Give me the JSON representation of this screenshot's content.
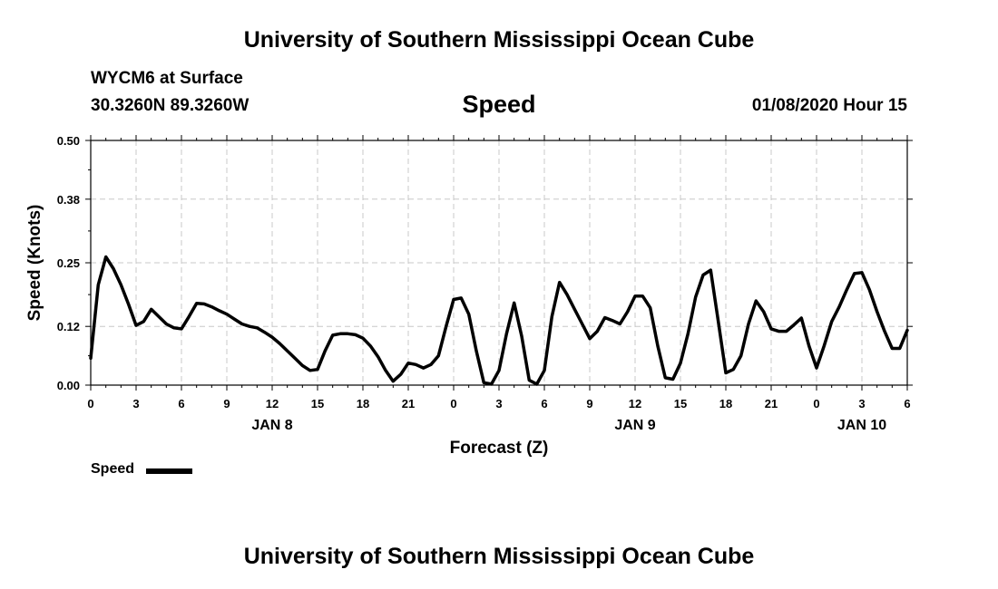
{
  "header": {
    "title": "University of Southern Mississippi Ocean Cube",
    "station": "WYCM6 at Surface",
    "coords": "30.3260N 89.3260W",
    "variable": "Speed",
    "datetime": "01/08/2020 Hour 15"
  },
  "footer": {
    "title": "University of Southern Mississippi Ocean Cube"
  },
  "legend": {
    "label": "Speed",
    "color": "#000000"
  },
  "chart_data": {
    "type": "line",
    "title": "Speed",
    "xlabel": "Forecast (Z)",
    "ylabel": "Speed (Knots)",
    "ylim": [
      0,
      0.5
    ],
    "yticks": [
      "0.00",
      "0.12",
      "0.25",
      "0.38",
      "0.50"
    ],
    "xlim": [
      0,
      54
    ],
    "xticks": [
      {
        "h": 0,
        "label": "0"
      },
      {
        "h": 3,
        "label": "3"
      },
      {
        "h": 6,
        "label": "6"
      },
      {
        "h": 9,
        "label": "9"
      },
      {
        "h": 12,
        "label": "12"
      },
      {
        "h": 15,
        "label": "15"
      },
      {
        "h": 18,
        "label": "18"
      },
      {
        "h": 21,
        "label": "21"
      },
      {
        "h": 24,
        "label": "0"
      },
      {
        "h": 27,
        "label": "3"
      },
      {
        "h": 30,
        "label": "6"
      },
      {
        "h": 33,
        "label": "9"
      },
      {
        "h": 36,
        "label": "12"
      },
      {
        "h": 39,
        "label": "15"
      },
      {
        "h": 42,
        "label": "18"
      },
      {
        "h": 45,
        "label": "21"
      },
      {
        "h": 48,
        "label": "0"
      },
      {
        "h": 51,
        "label": "3"
      },
      {
        "h": 54,
        "label": "6"
      }
    ],
    "day_labels": [
      {
        "h": 12,
        "label": "JAN 8"
      },
      {
        "h": 36,
        "label": "JAN 9"
      },
      {
        "h": 51,
        "label": "JAN 10"
      }
    ],
    "grid": true,
    "series": [
      {
        "name": "Speed",
        "color": "#000000",
        "points": [
          [
            0,
            0.055
          ],
          [
            0.5,
            0.205
          ],
          [
            1,
            0.262
          ],
          [
            1.5,
            0.238
          ],
          [
            2,
            0.205
          ],
          [
            2.5,
            0.165
          ],
          [
            3,
            0.122
          ],
          [
            3.5,
            0.13
          ],
          [
            4,
            0.155
          ],
          [
            4.5,
            0.14
          ],
          [
            5,
            0.125
          ],
          [
            5.5,
            0.117
          ],
          [
            6,
            0.115
          ],
          [
            6.5,
            0.14
          ],
          [
            7,
            0.167
          ],
          [
            7.5,
            0.166
          ],
          [
            8,
            0.16
          ],
          [
            8.5,
            0.152
          ],
          [
            9,
            0.145
          ],
          [
            9.5,
            0.135
          ],
          [
            10,
            0.125
          ],
          [
            10.5,
            0.12
          ],
          [
            11,
            0.117
          ],
          [
            11.5,
            0.108
          ],
          [
            12,
            0.098
          ],
          [
            12.5,
            0.085
          ],
          [
            13,
            0.07
          ],
          [
            13.5,
            0.055
          ],
          [
            14,
            0.04
          ],
          [
            14.5,
            0.03
          ],
          [
            15,
            0.032
          ],
          [
            15.5,
            0.07
          ],
          [
            16,
            0.102
          ],
          [
            16.5,
            0.105
          ],
          [
            17,
            0.105
          ],
          [
            17.5,
            0.103
          ],
          [
            18,
            0.096
          ],
          [
            18.5,
            0.08
          ],
          [
            19,
            0.058
          ],
          [
            19.5,
            0.03
          ],
          [
            20,
            0.008
          ],
          [
            20.5,
            0.022
          ],
          [
            21,
            0.045
          ],
          [
            21.5,
            0.042
          ],
          [
            22,
            0.035
          ],
          [
            22.5,
            0.042
          ],
          [
            23,
            0.06
          ],
          [
            23.5,
            0.12
          ],
          [
            24,
            0.175
          ],
          [
            24.5,
            0.178
          ],
          [
            25,
            0.145
          ],
          [
            25.5,
            0.07
          ],
          [
            26,
            0.005
          ],
          [
            26.5,
            0.002
          ],
          [
            27,
            0.03
          ],
          [
            27.5,
            0.105
          ],
          [
            28,
            0.168
          ],
          [
            28.5,
            0.1
          ],
          [
            29,
            0.01
          ],
          [
            29.5,
            0.002
          ],
          [
            30,
            0.03
          ],
          [
            30.5,
            0.14
          ],
          [
            31,
            0.21
          ],
          [
            31.5,
            0.185
          ],
          [
            32,
            0.155
          ],
          [
            32.5,
            0.125
          ],
          [
            33,
            0.095
          ],
          [
            33.5,
            0.11
          ],
          [
            34,
            0.138
          ],
          [
            34.5,
            0.132
          ],
          [
            35,
            0.125
          ],
          [
            35.5,
            0.15
          ],
          [
            36,
            0.182
          ],
          [
            36.5,
            0.182
          ],
          [
            37,
            0.158
          ],
          [
            37.5,
            0.08
          ],
          [
            38,
            0.015
          ],
          [
            38.5,
            0.012
          ],
          [
            39,
            0.045
          ],
          [
            39.5,
            0.105
          ],
          [
            40,
            0.18
          ],
          [
            40.5,
            0.225
          ],
          [
            41,
            0.235
          ],
          [
            41.5,
            0.13
          ],
          [
            42,
            0.025
          ],
          [
            42.5,
            0.032
          ],
          [
            43,
            0.06
          ],
          [
            43.5,
            0.125
          ],
          [
            44,
            0.172
          ],
          [
            44.5,
            0.15
          ],
          [
            45,
            0.115
          ],
          [
            45.5,
            0.11
          ],
          [
            46,
            0.11
          ],
          [
            46.5,
            0.123
          ],
          [
            47,
            0.137
          ],
          [
            47.5,
            0.08
          ],
          [
            48,
            0.035
          ],
          [
            48.5,
            0.08
          ],
          [
            49,
            0.13
          ],
          [
            49.5,
            0.16
          ],
          [
            50,
            0.195
          ],
          [
            50.5,
            0.228
          ],
          [
            51,
            0.23
          ],
          [
            51.5,
            0.195
          ],
          [
            52,
            0.15
          ],
          [
            52.5,
            0.11
          ],
          [
            53,
            0.075
          ],
          [
            53.5,
            0.075
          ],
          [
            54,
            0.112
          ]
        ]
      }
    ]
  }
}
